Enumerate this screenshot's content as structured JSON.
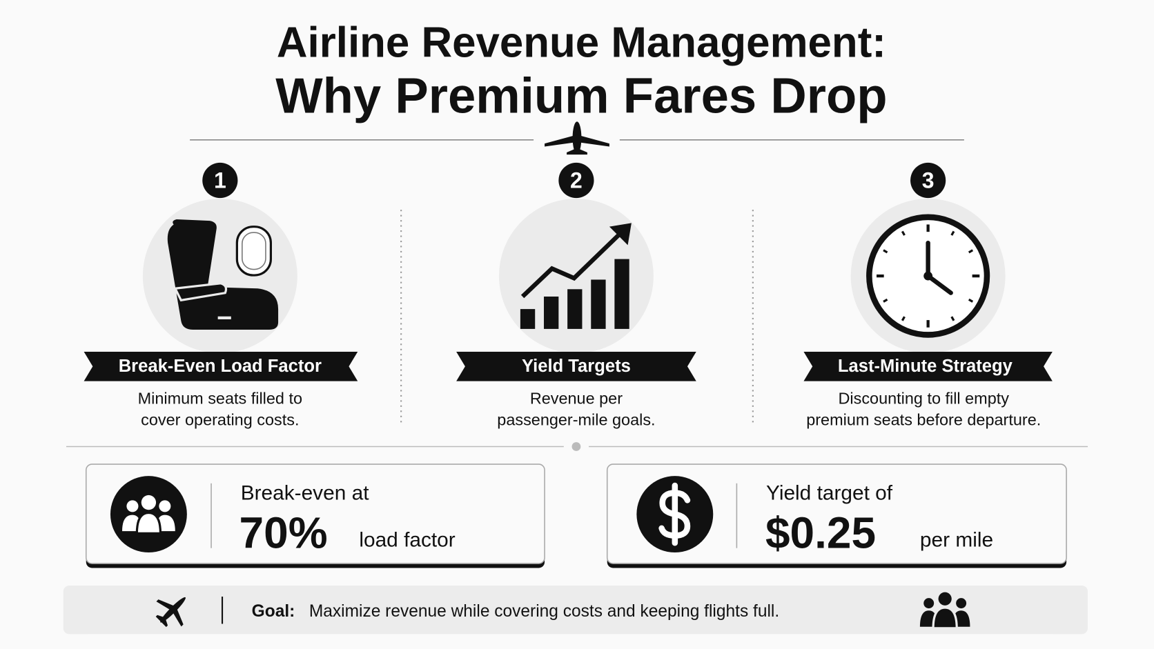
{
  "title": [
    "Airline Revenue Management:",
    "Why Premium Fares Drop"
  ],
  "steps": [
    {
      "number": "1",
      "label": "Break-Even Load Factor",
      "description": [
        "Minimum seats filled to",
        "cover operating costs."
      ]
    },
    {
      "number": "2",
      "label": "Yield Targets",
      "description": [
        "Revenue per",
        "passenger-mile goals."
      ]
    },
    {
      "number": "3",
      "label": "Last-Minute Strategy",
      "description": [
        "Discounting to fill empty",
        "premium seats before departure."
      ]
    }
  ],
  "stats": [
    {
      "lead": "Break-even at",
      "value": "70%",
      "unit": "load factor"
    },
    {
      "lead": "Yield target of",
      "value": "$0.25",
      "unit": "per mile"
    }
  ],
  "footer": {
    "label": "Goal:",
    "text": "Maximize revenue while covering costs and keeping flights full."
  }
}
